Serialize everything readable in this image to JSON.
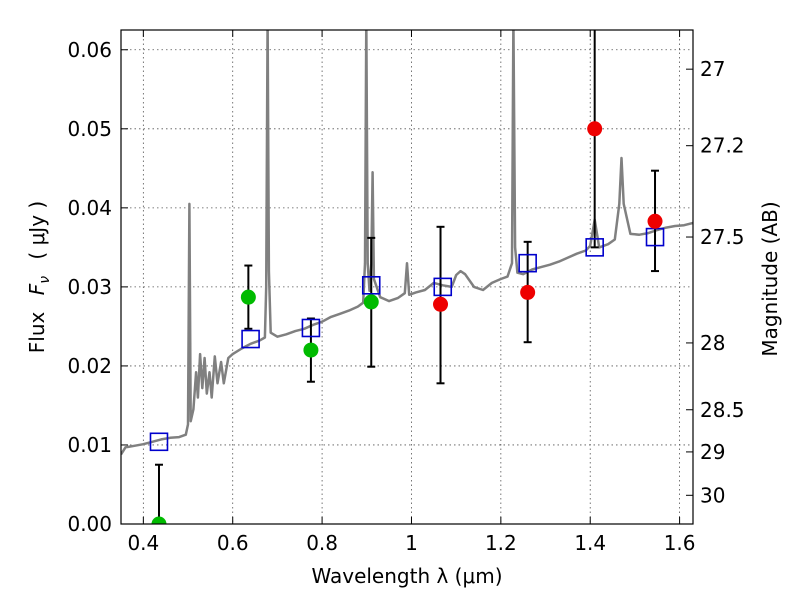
{
  "chart_data": {
    "type": "scatter",
    "xlabel": "Wavelength  λ (μm)",
    "ylabel_prefix": "Flux",
    "ylabel_symbol": "F",
    "ylabel_subscript": "ν",
    "ylabel_unit": "( μJy )",
    "y2label": "Magnitude (AB)",
    "xlim": [
      0.35,
      1.63
    ],
    "ylim": [
      0.0,
      0.0625
    ],
    "grid": true,
    "x_ticks": [
      0.4,
      0.6,
      0.8,
      1.0,
      1.2,
      1.4,
      1.6
    ],
    "x_tick_labels": [
      "0.4",
      "0.6",
      "0.8",
      "1",
      "1.2",
      "1.4",
      "1.6"
    ],
    "y_ticks": [
      0.0,
      0.01,
      0.02,
      0.03,
      0.04,
      0.05,
      0.06
    ],
    "y_tick_labels": [
      "0.00",
      "0.01",
      "0.02",
      "0.03",
      "0.04",
      "0.05",
      "0.06"
    ],
    "y2_tick_labels": [
      "27",
      "27.2",
      "27.5",
      "28",
      "28.5",
      "29",
      "30"
    ],
    "colors": {
      "model": "#808080",
      "green_points": "#00bb00",
      "red_points": "#ee0000",
      "model_photometry": "#0000cc",
      "errorbars": "#000000",
      "grid": "#555555"
    },
    "model_spectrum": [
      [
        0.35,
        0.0088
      ],
      [
        0.36,
        0.0097
      ],
      [
        0.38,
        0.0099
      ],
      [
        0.4,
        0.0101
      ],
      [
        0.42,
        0.0104
      ],
      [
        0.44,
        0.0107
      ],
      [
        0.46,
        0.0109
      ],
      [
        0.48,
        0.011
      ],
      [
        0.495,
        0.0113
      ],
      [
        0.5,
        0.0126
      ],
      [
        0.503,
        0.0405
      ],
      [
        0.506,
        0.013
      ],
      [
        0.512,
        0.0145
      ],
      [
        0.518,
        0.0192
      ],
      [
        0.522,
        0.016
      ],
      [
        0.527,
        0.0215
      ],
      [
        0.532,
        0.0172
      ],
      [
        0.537,
        0.021
      ],
      [
        0.542,
        0.0165
      ],
      [
        0.548,
        0.0192
      ],
      [
        0.553,
        0.016
      ],
      [
        0.56,
        0.0212
      ],
      [
        0.566,
        0.0178
      ],
      [
        0.574,
        0.0205
      ],
      [
        0.58,
        0.0178
      ],
      [
        0.59,
        0.021
      ],
      [
        0.6,
        0.0215
      ],
      [
        0.62,
        0.0222
      ],
      [
        0.64,
        0.0228
      ],
      [
        0.66,
        0.0232
      ],
      [
        0.672,
        0.0236
      ],
      [
        0.675,
        0.03
      ],
      [
        0.678,
        0.064
      ],
      [
        0.681,
        0.032
      ],
      [
        0.685,
        0.0242
      ],
      [
        0.7,
        0.0237
      ],
      [
        0.72,
        0.024
      ],
      [
        0.74,
        0.0244
      ],
      [
        0.76,
        0.0247
      ],
      [
        0.78,
        0.0252
      ],
      [
        0.8,
        0.0256
      ],
      [
        0.82,
        0.0262
      ],
      [
        0.84,
        0.0266
      ],
      [
        0.86,
        0.027
      ],
      [
        0.88,
        0.0275
      ],
      [
        0.892,
        0.028
      ],
      [
        0.896,
        0.033
      ],
      [
        0.899,
        0.064
      ],
      [
        0.902,
        0.033
      ],
      [
        0.906,
        0.0295
      ],
      [
        0.91,
        0.033
      ],
      [
        0.913,
        0.0445
      ],
      [
        0.916,
        0.031
      ],
      [
        0.93,
        0.0287
      ],
      [
        0.95,
        0.0282
      ],
      [
        0.97,
        0.0286
      ],
      [
        0.985,
        0.0292
      ],
      [
        0.99,
        0.033
      ],
      [
        0.995,
        0.029
      ],
      [
        1.01,
        0.0293
      ],
      [
        1.03,
        0.0296
      ],
      [
        1.05,
        0.0305
      ],
      [
        1.07,
        0.0302
      ],
      [
        1.09,
        0.03
      ],
      [
        1.1,
        0.0315
      ],
      [
        1.11,
        0.032
      ],
      [
        1.12,
        0.0316
      ],
      [
        1.14,
        0.03
      ],
      [
        1.16,
        0.0296
      ],
      [
        1.18,
        0.0305
      ],
      [
        1.2,
        0.031
      ],
      [
        1.215,
        0.0313
      ],
      [
        1.225,
        0.033
      ],
      [
        1.228,
        0.064
      ],
      [
        1.232,
        0.035
      ],
      [
        1.237,
        0.0318
      ],
      [
        1.25,
        0.0316
      ],
      [
        1.27,
        0.0322
      ],
      [
        1.29,
        0.0325
      ],
      [
        1.31,
        0.0328
      ],
      [
        1.33,
        0.0332
      ],
      [
        1.35,
        0.0337
      ],
      [
        1.37,
        0.0342
      ],
      [
        1.39,
        0.0346
      ],
      [
        1.4,
        0.0352
      ],
      [
        1.41,
        0.0385
      ],
      [
        1.42,
        0.035
      ],
      [
        1.44,
        0.0354
      ],
      [
        1.455,
        0.036
      ],
      [
        1.465,
        0.0405
      ],
      [
        1.47,
        0.0463
      ],
      [
        1.475,
        0.0405
      ],
      [
        1.49,
        0.0367
      ],
      [
        1.51,
        0.0366
      ],
      [
        1.53,
        0.0368
      ],
      [
        1.55,
        0.0372
      ],
      [
        1.57,
        0.0375
      ],
      [
        1.59,
        0.0377
      ],
      [
        1.61,
        0.0378
      ],
      [
        1.63,
        0.0381
      ]
    ],
    "green_points": [
      {
        "x": 0.435,
        "y": 0.0,
        "yerr_low": 0.0,
        "yerr_high": 0.0075
      },
      {
        "x": 0.635,
        "y": 0.0287,
        "yerr_low": 0.0247,
        "yerr_high": 0.0327
      },
      {
        "x": 0.775,
        "y": 0.022,
        "yerr_low": 0.018,
        "yerr_high": 0.026
      },
      {
        "x": 0.91,
        "y": 0.0281,
        "yerr_low": 0.0199,
        "yerr_high": 0.0362
      }
    ],
    "red_points": [
      {
        "x": 1.065,
        "y": 0.0278,
        "yerr_low": 0.0178,
        "yerr_high": 0.0376
      },
      {
        "x": 1.26,
        "y": 0.0293,
        "yerr_low": 0.023,
        "yerr_high": 0.0357
      },
      {
        "x": 1.41,
        "y": 0.05,
        "yerr_low": 0.035,
        "yerr_high": 0.064
      },
      {
        "x": 1.545,
        "y": 0.0383,
        "yerr_low": 0.032,
        "yerr_high": 0.0447
      }
    ],
    "model_photometry": [
      {
        "x": 0.435,
        "y": 0.0104
      },
      {
        "x": 0.64,
        "y": 0.0234
      },
      {
        "x": 0.775,
        "y": 0.0248
      },
      {
        "x": 0.91,
        "y": 0.0302
      },
      {
        "x": 1.07,
        "y": 0.03
      },
      {
        "x": 1.26,
        "y": 0.033
      },
      {
        "x": 1.41,
        "y": 0.035
      },
      {
        "x": 1.545,
        "y": 0.0363
      }
    ]
  }
}
